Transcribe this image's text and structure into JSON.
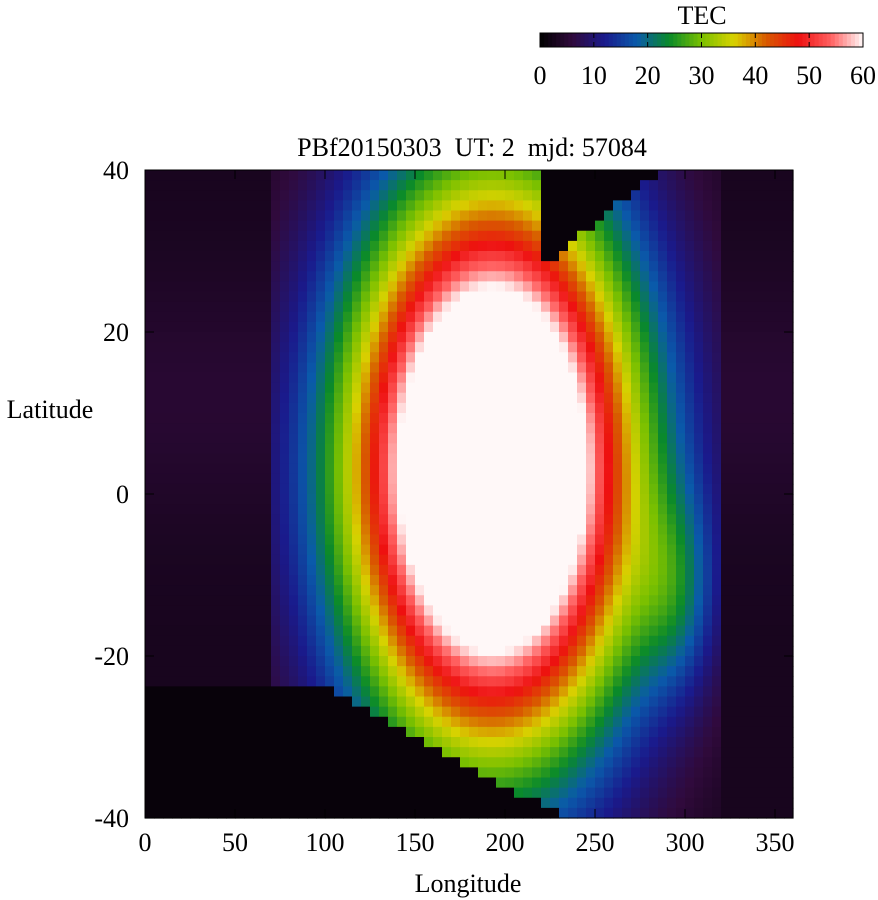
{
  "chart_data": {
    "type": "heatmap",
    "title": "PBf20150303  UT: 2  mjd: 57084",
    "xlabel": "Longitude",
    "ylabel": "Latitude",
    "xlim": [
      0,
      360
    ],
    "ylim": [
      -40,
      40
    ],
    "x_ticks": [
      0,
      50,
      100,
      150,
      200,
      250,
      300,
      350
    ],
    "y_ticks": [
      -40,
      -20,
      0,
      20,
      40
    ],
    "colorbar": {
      "label": "TEC",
      "range": [
        0,
        60
      ],
      "ticks": [
        0,
        10,
        20,
        30,
        40,
        50,
        60
      ],
      "placement": "top-right",
      "colors": [
        "#000000",
        "#300a3c",
        "#1a1a8c",
        "#0a5aaa",
        "#0a8a2a",
        "#7ac000",
        "#d8d200",
        "#d85a00",
        "#ee1010",
        "#ff6060",
        "#fff8f8"
      ]
    },
    "grid": false,
    "features": {
      "peak_region": {
        "lon_center": 193,
        "lat_center": 3,
        "tec": 60
      },
      "secondary_peak": {
        "lon_center": 295,
        "lat_center": -12,
        "tec": 33
      },
      "background_min": 0
    }
  }
}
